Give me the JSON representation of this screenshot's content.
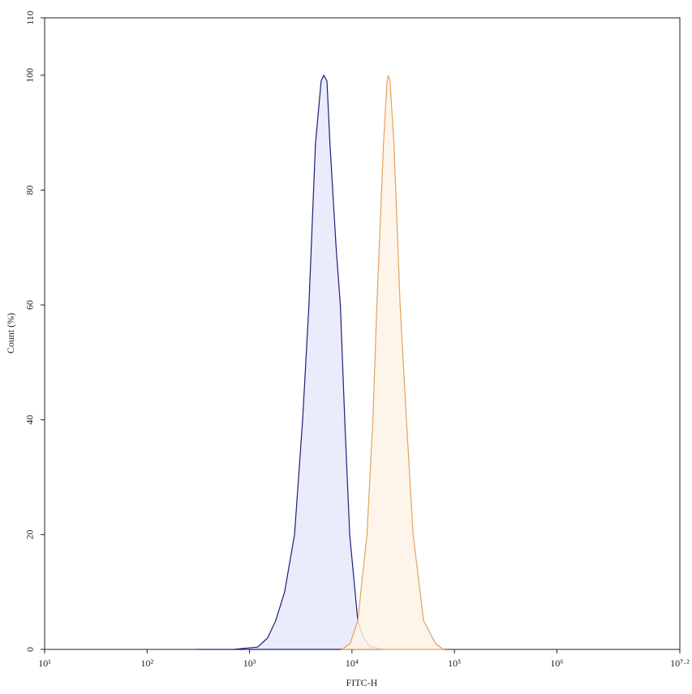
{
  "chart_data": {
    "type": "area",
    "xscale": "log",
    "xlabel": "FITC-H",
    "ylabel": "Count (%)",
    "xlim": [
      10,
      15848931.92
    ],
    "xticks": [
      {
        "value": 10,
        "label": "10¹"
      },
      {
        "value": 100,
        "label": "10²"
      },
      {
        "value": 1000,
        "label": "10³"
      },
      {
        "value": 10000,
        "label": "10⁴"
      },
      {
        "value": 100000,
        "label": "10⁵"
      },
      {
        "value": 1000000,
        "label": "10⁶"
      },
      {
        "value": 15848931.92,
        "label": "10⁷·²"
      }
    ],
    "ylim": [
      0,
      110
    ],
    "yticks": [
      0,
      20,
      40,
      60,
      80,
      100,
      110
    ],
    "series": [
      {
        "color": "#1c1f7a",
        "fill": "#e6e8fa",
        "x": [
          300,
          700,
          900,
          1200,
          1500,
          1800,
          2200,
          2750,
          3300,
          3800,
          4400,
          5000,
          5300,
          5700,
          6100,
          7000,
          7700,
          8500,
          9500,
          11400,
          13000,
          15000,
          20000
        ],
        "values": [
          0,
          0,
          0.2,
          0.4,
          2,
          5,
          10,
          20,
          40,
          60,
          88,
          99,
          100,
          99,
          88,
          70,
          60,
          40,
          20,
          5,
          2,
          0.5,
          0
        ]
      },
      {
        "color": "#e3a25e",
        "fill": "#fdf3e6",
        "x": [
          8000,
          9600,
          11400,
          14000,
          16000,
          17500,
          20300,
          22000,
          22600,
          23500,
          25700,
          29500,
          34000,
          39500,
          50000,
          65500,
          78000
        ],
        "values": [
          0,
          1,
          5,
          20,
          40,
          60,
          88,
          99,
          100,
          99,
          88,
          60,
          40,
          20,
          5,
          1,
          0
        ]
      }
    ]
  }
}
